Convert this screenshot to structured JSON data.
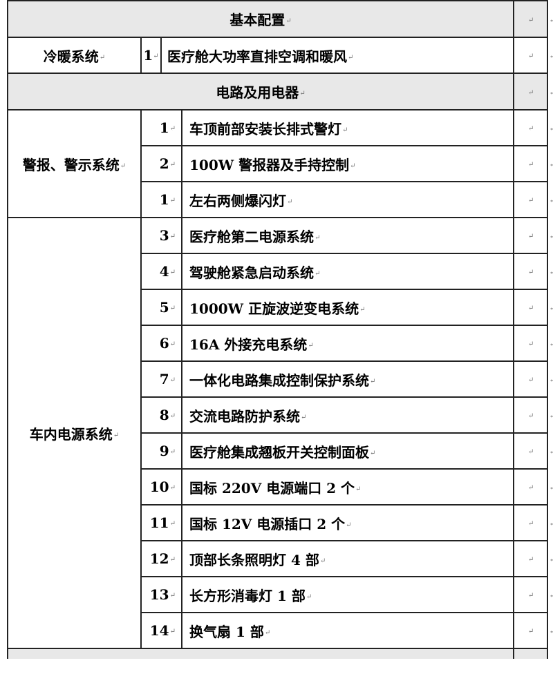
{
  "mark": "↵",
  "sections": {
    "basic": {
      "title": "基本配置"
    },
    "electrical": {
      "title": "电路及用电器"
    }
  },
  "hvac": {
    "category": "冷暖系统",
    "num": "1",
    "item": "医疗舱大功率直排空调和暖风"
  },
  "alarm": {
    "category": "警报、警示系统",
    "rows": [
      {
        "num": "1",
        "item": "车顶前部安装长排式警灯"
      },
      {
        "num": "2",
        "item": "100W 警报器及手持控制"
      },
      {
        "num": "1",
        "item": "左右两侧爆闪灯"
      }
    ]
  },
  "power": {
    "category": "车内电源系统",
    "rows": [
      {
        "num": "3",
        "item": "医疗舱第二电源系统"
      },
      {
        "num": "4",
        "item": "驾驶舱紧急启动系统"
      },
      {
        "num": "5",
        "item": "1000W 正旋波逆变电系统"
      },
      {
        "num": "6",
        "item": "16A 外接充电系统"
      },
      {
        "num": "7",
        "item": "一体化电路集成控制保护系统"
      },
      {
        "num": "8",
        "item": "交流电路防护系统"
      },
      {
        "num": "9",
        "item": "医疗舱集成翘板开关控制面板"
      },
      {
        "num": "10",
        "item": "国标 220V 电源端口 2 个"
      },
      {
        "num": "11",
        "item": "国标 12V 电源插口 2 个"
      },
      {
        "num": "12",
        "item": "顶部长条照明灯 4 部"
      },
      {
        "num": "13",
        "item": "长方形消毒灯 1 部"
      },
      {
        "num": "14",
        "item": "换气扇 1 部"
      }
    ]
  }
}
